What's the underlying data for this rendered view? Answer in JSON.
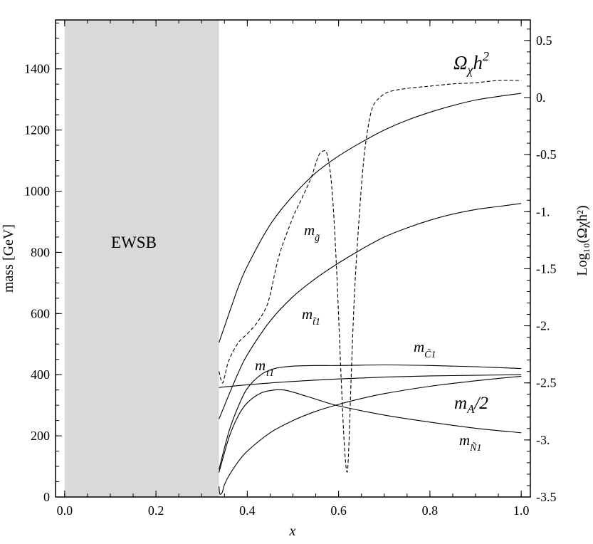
{
  "chart_data": {
    "type": "line",
    "xlabel": "x",
    "ylabel_left": "mass  [GeV]",
    "ylabel_right": "Log₁₀(Ωχh²)",
    "xlim": [
      -0.02,
      1.02
    ],
    "ylim_left": [
      0,
      1560
    ],
    "ylim_right": [
      -3.5,
      0.68
    ],
    "x_ticks": [
      0.0,
      0.2,
      0.4,
      0.6,
      0.8,
      1.0
    ],
    "x_tick_labels": [
      "0.0",
      "0.2",
      "0.4",
      "0.6",
      "0.8",
      "1.0"
    ],
    "y_left_ticks": [
      0,
      200,
      400,
      600,
      800,
      1000,
      1200,
      1400
    ],
    "y_left_tick_labels": [
      "0",
      "200",
      "400",
      "600",
      "800",
      "1000",
      "1200",
      "1400"
    ],
    "y_right_ticks": [
      -3.5,
      -3.0,
      -2.5,
      -2.0,
      -1.5,
      -1.0,
      -0.5,
      0.0,
      0.5
    ],
    "y_right_tick_labels": [
      "-3.5",
      "-3.",
      "-2.5",
      "-2.",
      "-1.5",
      "-1.",
      "-0.5",
      "0.",
      "0.5"
    ],
    "shaded_region": {
      "label": "EWSB",
      "x": [
        0.0,
        0.338
      ],
      "color": "#d9d9d9"
    },
    "series": [
      {
        "name": "m_g~",
        "axis": "left",
        "style": "solid",
        "x": [
          0.338,
          0.36,
          0.38,
          0.4,
          0.45,
          0.5,
          0.55,
          0.6,
          0.65,
          0.7,
          0.75,
          0.8,
          0.85,
          0.9,
          0.95,
          1.0
        ],
        "y": [
          505,
          600,
          685,
          755,
          890,
          985,
          1060,
          1115,
          1160,
          1200,
          1232,
          1258,
          1280,
          1298,
          1310,
          1320
        ]
      },
      {
        "name": "m_t~1",
        "axis": "left",
        "style": "solid",
        "x": [
          0.338,
          0.36,
          0.38,
          0.4,
          0.45,
          0.5,
          0.55,
          0.6,
          0.65,
          0.7,
          0.75,
          0.8,
          0.85,
          0.9,
          0.95,
          1.0
        ],
        "y": [
          255,
          335,
          405,
          465,
          575,
          655,
          715,
          765,
          810,
          850,
          880,
          905,
          925,
          940,
          950,
          960
        ]
      },
      {
        "name": "m_C~1",
        "axis": "left",
        "style": "solid",
        "x": [
          0.338,
          0.36,
          0.38,
          0.4,
          0.43,
          0.46,
          0.5,
          0.55,
          0.6,
          0.7,
          0.8,
          0.9,
          1.0
        ],
        "y": [
          90,
          215,
          295,
          355,
          400,
          420,
          428,
          430,
          430,
          432,
          430,
          426,
          420
        ]
      },
      {
        "name": "m_tau~1",
        "axis": "left",
        "style": "solid",
        "x": [
          0.338,
          0.4,
          0.5,
          0.6,
          0.7,
          0.8,
          0.9,
          1.0
        ],
        "y": [
          358,
          367,
          378,
          386,
          392,
          396,
          398,
          400
        ]
      },
      {
        "name": "m_N~1",
        "axis": "left",
        "style": "solid",
        "x": [
          0.338,
          0.36,
          0.38,
          0.4,
          0.43,
          0.46,
          0.48,
          0.5,
          0.55,
          0.6,
          0.7,
          0.8,
          0.9,
          1.0
        ],
        "y": [
          80,
          195,
          265,
          308,
          340,
          350,
          350,
          343,
          320,
          298,
          268,
          245,
          225,
          210
        ]
      },
      {
        "name": "m_A/2",
        "axis": "left",
        "style": "solid",
        "x": [
          0.338,
          0.34,
          0.345,
          0.35,
          0.36,
          0.38,
          0.4,
          0.45,
          0.5,
          0.55,
          0.6,
          0.65,
          0.7,
          0.8,
          0.9,
          1.0
        ],
        "y": [
          35,
          10,
          15,
          40,
          70,
          115,
          150,
          210,
          250,
          280,
          303,
          322,
          338,
          362,
          380,
          395
        ]
      },
      {
        "name": "Ωχh²",
        "axis": "right",
        "style": "dashed",
        "x": [
          0.338,
          0.345,
          0.35,
          0.36,
          0.38,
          0.4,
          0.42,
          0.44,
          0.45,
          0.47,
          0.5,
          0.52,
          0.54,
          0.555,
          0.565,
          0.575,
          0.585,
          0.595,
          0.605,
          0.612,
          0.618,
          0.622,
          0.628,
          0.635,
          0.645,
          0.655,
          0.665,
          0.675,
          0.69,
          0.71,
          0.75,
          0.8,
          0.85,
          0.9,
          0.95,
          1.0
        ],
        "y": [
          -2.4,
          -2.5,
          -2.45,
          -2.3,
          -2.15,
          -2.07,
          -1.98,
          -1.85,
          -1.73,
          -1.38,
          -1.05,
          -0.88,
          -0.7,
          -0.52,
          -0.47,
          -0.5,
          -0.78,
          -1.45,
          -2.4,
          -3.0,
          -3.28,
          -3.1,
          -2.4,
          -1.7,
          -1.05,
          -0.55,
          -0.25,
          -0.08,
          0.0,
          0.05,
          0.08,
          0.1,
          0.12,
          0.13,
          0.15,
          0.15
        ]
      }
    ],
    "labels": {
      "ewsb": "EWSB",
      "omega_main": "Ω",
      "omega_sub": "χ",
      "omega_h": "h",
      "omega_sup": "2",
      "gluino_m": "m",
      "gluino_sub": "g̃",
      "stop_m": "m",
      "stop_sub": "t̃1",
      "chargino_m": "m",
      "chargino_sub": "C̃1",
      "stau_m": "m",
      "stau_sub": "τ̃1",
      "ma_text": "m",
      "ma_sub": "A",
      "ma_tail": "/2",
      "neutralino_m": "m",
      "neutralino_sub": "Ñ1"
    }
  }
}
